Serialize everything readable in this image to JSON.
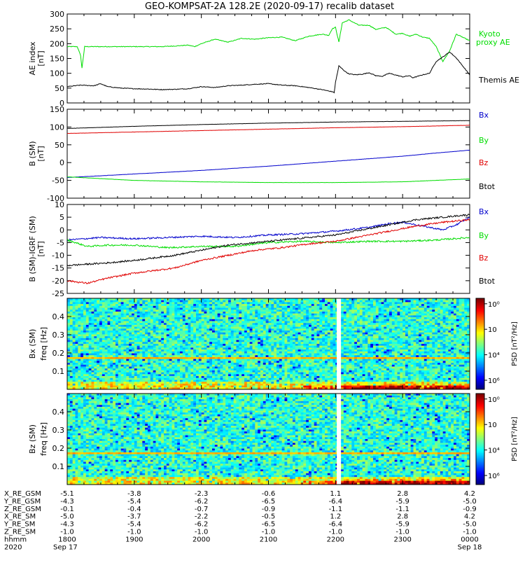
{
  "title": "GEO-KOMPSAT-2A 128.2E (2020-09-17) recalib dataset",
  "colors": {
    "black": "#000000",
    "red": "#e00000",
    "green": "#00dd00",
    "blue": "#0000cc"
  },
  "chart_data": [
    {
      "type": "line",
      "ylabel": "AE index",
      "yunit": "[nT]",
      "ylim": [
        0,
        300
      ],
      "yticks": [
        "0",
        "50",
        "100",
        "150",
        "200",
        "250",
        "300"
      ],
      "series": [
        {
          "name": "Kyoto proxy AE",
          "color": "#00dd00",
          "x": [
            18.0,
            18.08,
            18.15,
            18.2,
            18.22,
            18.26,
            18.4,
            18.6,
            18.8,
            19.0,
            19.2,
            19.4,
            19.6,
            19.8,
            19.9,
            20.0,
            20.2,
            20.4,
            20.6,
            20.8,
            21.0,
            21.2,
            21.4,
            21.6,
            21.8,
            21.9,
            21.95,
            22.0,
            22.05,
            22.1,
            22.2,
            22.35,
            22.5,
            22.6,
            22.75,
            22.9,
            23.0,
            23.1,
            23.2,
            23.3,
            23.4,
            23.5,
            23.6,
            23.7,
            23.8,
            24.0
          ],
          "y": [
            190,
            190,
            190,
            160,
            117,
            190,
            190,
            190,
            190,
            190,
            190,
            190,
            192,
            195,
            190,
            200,
            215,
            205,
            218,
            215,
            220,
            222,
            210,
            225,
            232,
            228,
            250,
            255,
            205,
            270,
            280,
            262,
            262,
            248,
            255,
            232,
            235,
            225,
            232,
            222,
            218,
            190,
            140,
            175,
            232,
            210
          ]
        },
        {
          "name": "Themis AE",
          "color": "#000000",
          "x": [
            18.0,
            18.2,
            18.4,
            18.5,
            18.6,
            18.8,
            19.0,
            19.2,
            19.4,
            19.6,
            19.8,
            20.0,
            20.2,
            20.4,
            20.6,
            20.8,
            21.0,
            21.2,
            21.4,
            21.6,
            21.8,
            21.9,
            21.95,
            21.98,
            22.0,
            22.05,
            22.1,
            22.15,
            22.2,
            22.3,
            22.4,
            22.5,
            22.6,
            22.7,
            22.8,
            22.9,
            23.0,
            23.1,
            23.15,
            23.2,
            23.3,
            23.4,
            23.5,
            23.6,
            23.7,
            23.8,
            24.0
          ],
          "y": [
            55,
            60,
            58,
            65,
            55,
            50,
            48,
            47,
            45,
            46,
            48,
            55,
            52,
            58,
            60,
            63,
            65,
            60,
            58,
            52,
            45,
            40,
            38,
            35,
            70,
            125,
            115,
            105,
            98,
            95,
            97,
            102,
            92,
            90,
            100,
            94,
            88,
            92,
            85,
            88,
            95,
            100,
            140,
            155,
            172,
            152,
            95
          ]
        }
      ]
    },
    {
      "type": "line",
      "ylabel": "B (SM)",
      "yunit": "[nT]",
      "ylim": [
        -100,
        150
      ],
      "yticks": [
        "-100",
        "-50",
        "0",
        "50",
        "100",
        "150"
      ],
      "series": [
        {
          "name": "Bx",
          "color": "#0000cc",
          "x": [
            18.0,
            19.0,
            20.0,
            21.0,
            22.0,
            23.0,
            23.5,
            24.0
          ],
          "y": [
            -42,
            -32,
            -22,
            -10,
            4,
            18,
            27,
            35
          ]
        },
        {
          "name": "By",
          "color": "#00dd00",
          "x": [
            18.0,
            18.5,
            19.0,
            20.0,
            21.0,
            22.0,
            23.0,
            23.5,
            24.0
          ],
          "y": [
            -40,
            -45,
            -50,
            -54,
            -56,
            -56,
            -54,
            -50,
            -46
          ]
        },
        {
          "name": "Bz",
          "color": "#e00000",
          "x": [
            18.0,
            19.0,
            20.0,
            21.0,
            22.0,
            23.0,
            24.0
          ],
          "y": [
            82,
            86,
            90,
            94,
            98,
            101,
            105
          ]
        },
        {
          "name": "Btot",
          "color": "#000000",
          "x": [
            18.0,
            19.0,
            20.0,
            21.0,
            22.0,
            23.0,
            24.0
          ],
          "y": [
            96,
            102,
            107,
            111,
            114,
            116,
            118
          ]
        }
      ]
    },
    {
      "type": "line",
      "ylabel": "B (SM)-IGRF (SM)",
      "yunit": "[nT]",
      "ylim": [
        -25,
        10
      ],
      "yticks": [
        "-25",
        "-20",
        "-15",
        "-10",
        "-5",
        "0",
        "5",
        "10"
      ],
      "series": [
        {
          "name": "Bx",
          "color": "#0000cc",
          "x": [
            18.0,
            18.5,
            19.0,
            19.5,
            20.0,
            20.5,
            21.0,
            21.5,
            22.0,
            22.5,
            22.8,
            23.0,
            23.2,
            23.4,
            23.6,
            23.8,
            24.0
          ],
          "y": [
            -4,
            -3,
            -3.5,
            -3,
            -2.5,
            -3,
            -2,
            -1.5,
            -0.5,
            1,
            2.5,
            3,
            2,
            1,
            0,
            2,
            5
          ]
        },
        {
          "name": "By",
          "color": "#00dd00",
          "x": [
            18.0,
            18.3,
            18.6,
            19.0,
            19.5,
            20.0,
            20.5,
            21.0,
            21.5,
            22.0,
            22.5,
            23.0,
            23.5,
            24.0
          ],
          "y": [
            -4,
            -6.5,
            -6,
            -6,
            -7,
            -6.5,
            -6.5,
            -5,
            -4.5,
            -5,
            -4.5,
            -4.5,
            -4,
            -3
          ]
        },
        {
          "name": "Bz",
          "color": "#e00000",
          "x": [
            18.0,
            18.3,
            18.6,
            19.0,
            19.3,
            19.6,
            20.0,
            20.4,
            20.8,
            21.2,
            21.6,
            22.0,
            22.4,
            22.8,
            23.2,
            23.6,
            24.0
          ],
          "y": [
            -20,
            -21,
            -19,
            -17,
            -16,
            -15,
            -12,
            -10,
            -8,
            -7,
            -5.5,
            -4.5,
            -2.5,
            -0.5,
            1.5,
            3,
            4
          ]
        },
        {
          "name": "Btot",
          "color": "#000000",
          "x": [
            18.0,
            18.3,
            18.6,
            19.0,
            19.3,
            19.6,
            20.0,
            20.4,
            20.8,
            21.2,
            21.6,
            22.0,
            22.4,
            22.8,
            23.2,
            23.6,
            24.0
          ],
          "y": [
            -14,
            -13.5,
            -13,
            -12,
            -11,
            -10,
            -8,
            -6,
            -5,
            -4,
            -3,
            -2,
            0,
            2,
            4,
            5,
            6
          ]
        }
      ]
    },
    {
      "type": "heatmap",
      "ylabel": "Bx (SM)",
      "yunit": "freq [Hz]",
      "yticks": [
        "0.1",
        "0.2",
        "0.3",
        "0.4"
      ],
      "ylim": [
        0,
        0.5
      ],
      "colorbar_label": "PSD [nT²/Hz]",
      "colorbar_ticks": [
        "10⁶",
        "10⁴",
        "10⁲",
        "10⁰"
      ],
      "data_gap_hour": 22.05
    },
    {
      "type": "heatmap",
      "ylabel": "Bz (SM)",
      "yunit": "freq [Hz]",
      "yticks": [
        "0.1",
        "0.2",
        "0.3",
        "0.4"
      ],
      "ylim": [
        0,
        0.5
      ],
      "colorbar_label": "PSD [nT²/Hz]",
      "colorbar_ticks": [
        "10⁶",
        "10⁴",
        "10⁲",
        "10⁰"
      ],
      "data_gap_hour": 22.05
    }
  ],
  "right_legend": {
    "panel1": [
      "Kyoto",
      "proxy AE",
      "Themis AE"
    ],
    "panel2": [
      "Bx",
      "By",
      "Bz",
      "Btot"
    ],
    "panel3": [
      "Bx",
      "By",
      "Bz",
      "Btot"
    ]
  },
  "footer": {
    "rows": [
      {
        "label": "X_RE_GSM",
        "values": [
          "-5.1",
          "-3.8",
          "-2.3",
          "-0.6",
          "1.1",
          "2.8",
          "4.2"
        ]
      },
      {
        "label": "Y_RE_GSM",
        "values": [
          "-4.3",
          "-5.4",
          "-6.2",
          "-6.5",
          "-6.4",
          "-5.9",
          "-5.0"
        ]
      },
      {
        "label": "Z_RE_GSM",
        "values": [
          "-0.1",
          "-0.4",
          "-0.7",
          "-0.9",
          "-1.1",
          "-1.1",
          "-0.9"
        ]
      },
      {
        "label": "X_RE_SM",
        "values": [
          "-5.0",
          "-3.7",
          "-2.2",
          "-0.5",
          "1.2",
          "2.8",
          "4.2"
        ]
      },
      {
        "label": "Y_RE_SM",
        "values": [
          "-4.3",
          "-5.4",
          "-6.2",
          "-6.5",
          "-6.4",
          "-5.9",
          "-5.0"
        ]
      },
      {
        "label": "Z_RE_SM",
        "values": [
          "-1.0",
          "-1.0",
          "-1.0",
          "-1.0",
          "-1.0",
          "-1.0",
          "-1.0"
        ]
      },
      {
        "label": "hhmm",
        "values": [
          "1800",
          "1900",
          "2000",
          "2100",
          "2200",
          "2300",
          "0000"
        ]
      },
      {
        "label": "2020",
        "values": [
          "Sep 17",
          "",
          "",
          "",
          "",
          "",
          "Sep 18"
        ]
      }
    ]
  }
}
